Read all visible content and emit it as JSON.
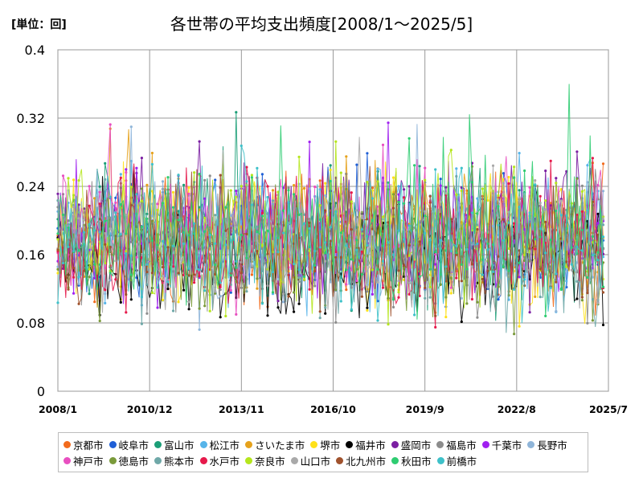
{
  "chart_data": {
    "type": "line",
    "title": "各世帯の平均支出頻度[2008/1～2025/5]",
    "unit_label": "[単位：回]",
    "xlabel": "",
    "ylabel": "",
    "ylim": [
      0,
      0.4
    ],
    "y_ticks": [
      "0",
      "0.08",
      "0.16",
      "0.24",
      "0.32",
      "0.4"
    ],
    "y_tick_values": [
      0,
      0.08,
      0.16,
      0.24,
      0.32,
      0.4
    ],
    "x_ticks": [
      "2008/1",
      "2010/12",
      "2013/11",
      "2016/10",
      "2019/9",
      "2022/8",
      "2025/7"
    ],
    "x_tick_months": [
      0,
      35,
      70,
      105,
      140,
      175,
      210
    ],
    "x_period_months": 209,
    "grid": true,
    "legend_position": "bottom",
    "series": [
      {
        "name": "京都市",
        "color": "#f26b1d",
        "mean": 0.17,
        "spread": 0.045
      },
      {
        "name": "岐阜市",
        "color": "#1f5fd6",
        "mean": 0.175,
        "spread": 0.045
      },
      {
        "name": "富山市",
        "color": "#1b9e77",
        "mean": 0.18,
        "spread": 0.05
      },
      {
        "name": "松江市",
        "color": "#56b4e9",
        "mean": 0.185,
        "spread": 0.05
      },
      {
        "name": "さいたま市",
        "color": "#e6a21c",
        "mean": 0.19,
        "spread": 0.045
      },
      {
        "name": "堺市",
        "color": "#ffe119",
        "mean": 0.185,
        "spread": 0.05
      },
      {
        "name": "福井市",
        "color": "#000000",
        "mean": 0.15,
        "spread": 0.04
      },
      {
        "name": "盛岡市",
        "color": "#7b1fa2",
        "mean": 0.19,
        "spread": 0.05
      },
      {
        "name": "福島市",
        "color": "#8c8c8c",
        "mean": 0.175,
        "spread": 0.045
      },
      {
        "name": "千葉市",
        "color": "#a020f0",
        "mean": 0.18,
        "spread": 0.045
      },
      {
        "name": "長野市",
        "color": "#8fb5d9",
        "mean": 0.17,
        "spread": 0.045
      },
      {
        "name": "神戸市",
        "color": "#e84fc0",
        "mean": 0.185,
        "spread": 0.05
      },
      {
        "name": "徳島市",
        "color": "#7a9a3a",
        "mean": 0.16,
        "spread": 0.045
      },
      {
        "name": "熊本市",
        "color": "#6fa8a8",
        "mean": 0.165,
        "spread": 0.045
      },
      {
        "name": "水戸市",
        "color": "#e6194b",
        "mean": 0.175,
        "spread": 0.05
      },
      {
        "name": "奈良市",
        "color": "#b5e61d",
        "mean": 0.185,
        "spread": 0.05
      },
      {
        "name": "山口市",
        "color": "#a9a9a9",
        "mean": 0.17,
        "spread": 0.045
      },
      {
        "name": "北九州市",
        "color": "#a0522d",
        "mean": 0.165,
        "spread": 0.045
      },
      {
        "name": "秋田市",
        "color": "#2ecc71",
        "mean": 0.18,
        "spread": 0.05
      },
      {
        "name": "前橋市",
        "color": "#3ec1c9",
        "mean": 0.175,
        "spread": 0.05
      }
    ]
  }
}
